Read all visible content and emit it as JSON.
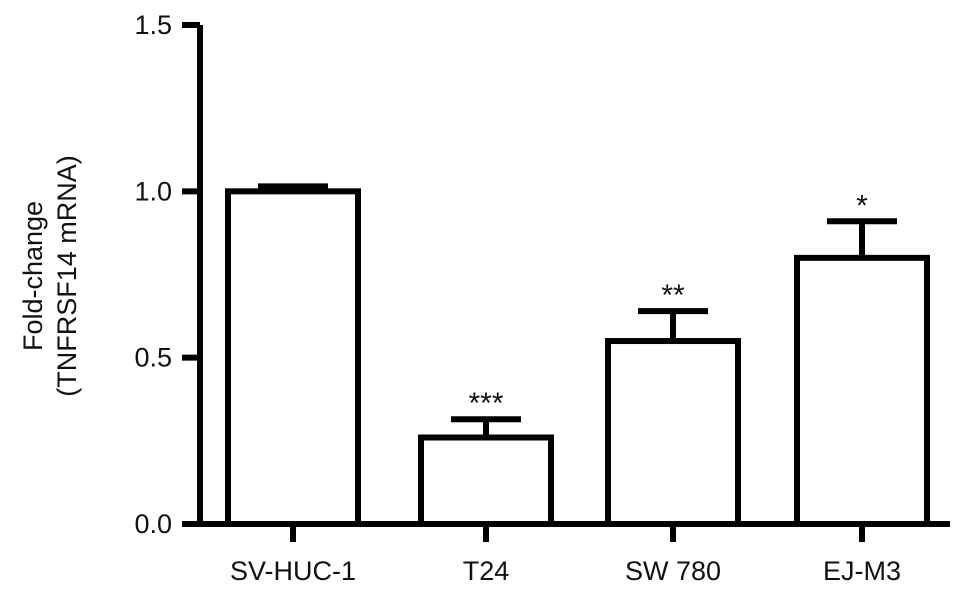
{
  "chart_data": {
    "type": "bar",
    "title": "",
    "xlabel": "",
    "ylabel_lines": [
      "Fold-change",
      "(TNFRSF14 mRNA)"
    ],
    "categories": [
      "SV-HUC-1",
      "T24",
      "SW 780",
      "EJ-M3"
    ],
    "values": [
      1.0,
      0.26,
      0.55,
      0.8
    ],
    "errors": [
      0.015,
      0.055,
      0.09,
      0.11
    ],
    "significance": [
      "",
      "***",
      "**",
      "*"
    ],
    "ylim": [
      0,
      1.5
    ],
    "yticks": [
      0.0,
      0.5,
      1.0,
      1.5
    ],
    "ytick_labels": [
      "0.0",
      "0.5",
      "1.0",
      "1.5"
    ],
    "grid": false,
    "legend": "none",
    "bar_fill": "#ffffff",
    "stroke_color": "#000000"
  }
}
